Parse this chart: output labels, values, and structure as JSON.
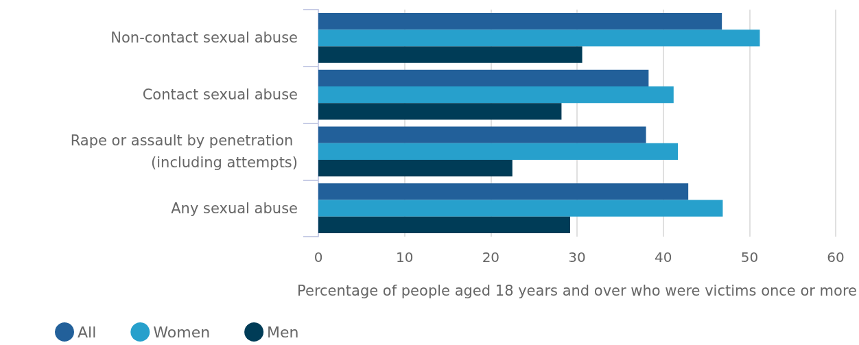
{
  "chart_data": {
    "type": "bar",
    "orientation": "horizontal",
    "categories": [
      "Non-contact sexual abuse",
      "Contact sexual abuse",
      "Rape or assault by penetration (including attempts)",
      "Any sexual abuse"
    ],
    "series": [
      {
        "name": "All",
        "color": "#22609a",
        "values": [
          46.8,
          38.3,
          38.0,
          42.9
        ]
      },
      {
        "name": "Women",
        "color": "#27a0cc",
        "values": [
          51.2,
          41.2,
          41.7,
          46.9
        ]
      },
      {
        "name": "Men",
        "color": "#003c57",
        "values": [
          30.6,
          28.2,
          22.5,
          29.2
        ]
      }
    ],
    "xlabel": "Percentage of people aged 18 years and over who were victims once or more",
    "xlim": [
      0,
      60
    ],
    "xticks": [
      0,
      10,
      20,
      30,
      40,
      50,
      60
    ],
    "grid": "x",
    "legend": "bottom left"
  }
}
